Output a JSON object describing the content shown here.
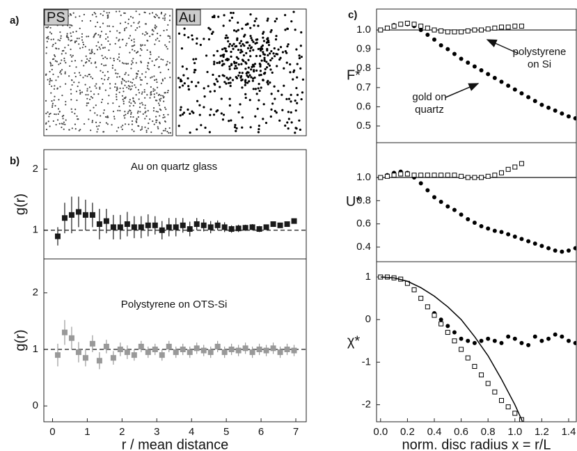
{
  "chart_data": [
    {
      "type": "image",
      "panel_label": "a)",
      "insets": [
        "PS",
        "Au"
      ]
    },
    {
      "type": "scatter",
      "panel_label": "b)",
      "annotation": "Au on quartz glass",
      "ylabel": "g(r)",
      "xlim": [
        -0.25,
        7.3
      ],
      "ylim": [
        0.53,
        2.32
      ],
      "yticks": [
        1,
        2
      ],
      "reference_line": 1,
      "series": [
        {
          "color": "#1a1a1a",
          "marker": "square",
          "x": [
            0.15,
            0.35,
            0.55,
            0.75,
            0.95,
            1.15,
            1.35,
            1.55,
            1.75,
            1.95,
            2.15,
            2.35,
            2.55,
            2.75,
            2.95,
            3.15,
            3.35,
            3.55,
            3.75,
            3.95,
            4.15,
            4.35,
            4.55,
            4.75,
            4.95,
            5.15,
            5.35,
            5.55,
            5.75,
            5.95,
            6.15,
            6.35,
            6.55,
            6.75,
            6.95
          ],
          "values": [
            0.9,
            1.2,
            1.25,
            1.3,
            1.25,
            1.25,
            1.1,
            1.15,
            1.05,
            1.05,
            1.1,
            1.05,
            1.05,
            1.08,
            1.08,
            1.0,
            1.05,
            1.05,
            1.08,
            1.02,
            1.1,
            1.08,
            1.05,
            1.08,
            1.05,
            1.02,
            1.03,
            1.04,
            1.05,
            1.02,
            1.05,
            1.1,
            1.08,
            1.1,
            1.15
          ],
          "errors": [
            0.15,
            0.25,
            0.3,
            0.25,
            0.25,
            0.2,
            0.25,
            0.2,
            0.2,
            0.2,
            0.2,
            0.18,
            0.18,
            0.18,
            0.15,
            0.15,
            0.15,
            0.15,
            0.12,
            0.12,
            0.1,
            0.1,
            0.1,
            0.08,
            0.08,
            0.06,
            0.06,
            0.05,
            0.05,
            0.05,
            0.04,
            0.04,
            0.04,
            0.04,
            0.04
          ]
        }
      ]
    },
    {
      "type": "scatter",
      "annotation": "Polystyrene on OTS-Si",
      "ylabel": "g(r)",
      "xlabel": "r / mean distance",
      "xlim": [
        -0.25,
        7.3
      ],
      "ylim": [
        -0.28,
        2.6
      ],
      "xticks": [
        0,
        1,
        2,
        3,
        4,
        5,
        6,
        7
      ],
      "yticks": [
        0,
        1,
        2
      ],
      "reference_line": 1,
      "series": [
        {
          "color": "#999999",
          "marker": "square",
          "x": [
            0.15,
            0.35,
            0.55,
            0.75,
            0.95,
            1.15,
            1.35,
            1.55,
            1.75,
            1.95,
            2.15,
            2.35,
            2.55,
            2.75,
            2.95,
            3.15,
            3.35,
            3.55,
            3.75,
            3.95,
            4.15,
            4.35,
            4.55,
            4.75,
            4.95,
            5.15,
            5.35,
            5.55,
            5.75,
            5.95,
            6.15,
            6.35,
            6.55,
            6.75,
            6.95
          ],
          "values": [
            0.9,
            1.3,
            1.2,
            0.95,
            0.85,
            1.1,
            0.8,
            1.05,
            0.85,
            1.0,
            0.95,
            0.9,
            1.05,
            0.95,
            1.0,
            0.9,
            1.05,
            0.95,
            1.0,
            0.95,
            1.02,
            0.98,
            0.95,
            1.05,
            0.95,
            1.0,
            0.98,
            1.02,
            0.95,
            1.0,
            0.98,
            1.02,
            0.95,
            1.0,
            0.98
          ],
          "errors": [
            0.2,
            0.22,
            0.2,
            0.18,
            0.15,
            0.15,
            0.15,
            0.12,
            0.12,
            0.12,
            0.12,
            0.1,
            0.1,
            0.1,
            0.1,
            0.1,
            0.1,
            0.1,
            0.1,
            0.1,
            0.1,
            0.1,
            0.1,
            0.1,
            0.1,
            0.1,
            0.1,
            0.1,
            0.1,
            0.1,
            0.1,
            0.1,
            0.1,
            0.1,
            0.1
          ]
        }
      ]
    },
    {
      "type": "scatter",
      "panel_label": "c)",
      "ylabel": "F*",
      "xlim": [
        -0.03,
        1.457
      ],
      "ylim": [
        0.413,
        1.109
      ],
      "yticks": [
        0.5,
        0.6,
        0.7,
        0.8,
        0.9,
        {
          "value": 1,
          "label": "1.0"
        }
      ],
      "reference_line": 1,
      "annotations": [
        [
          "polystyrene",
          "on Si"
        ],
        [
          "gold on",
          "quartz"
        ]
      ],
      "series": [
        {
          "color": "#000000",
          "marker": "circle",
          "x": [
            0,
            0.05,
            0.1,
            0.15,
            0.2,
            0.25,
            0.3,
            0.35,
            0.4,
            0.45,
            0.5,
            0.55,
            0.6,
            0.65,
            0.7,
            0.75,
            0.8,
            0.85,
            0.9,
            0.95,
            1.0,
            1.05,
            1.1,
            1.15,
            1.2,
            1.25,
            1.3,
            1.35,
            1.4,
            1.45
          ],
          "values": [
            1.0,
            1.01,
            1.025,
            1.03,
            1.03,
            1.02,
            1.0,
            0.975,
            0.95,
            0.92,
            0.9,
            0.875,
            0.85,
            0.83,
            0.81,
            0.79,
            0.77,
            0.75,
            0.73,
            0.71,
            0.69,
            0.67,
            0.65,
            0.63,
            0.61,
            0.595,
            0.58,
            0.565,
            0.55,
            0.54
          ]
        },
        {
          "color": "#000000",
          "marker": "open-square",
          "x": [
            0,
            0.05,
            0.1,
            0.15,
            0.2,
            0.25,
            0.3,
            0.35,
            0.4,
            0.45,
            0.5,
            0.55,
            0.6,
            0.65,
            0.7,
            0.75,
            0.8,
            0.85,
            0.9,
            0.95,
            1.0,
            1.05
          ],
          "values": [
            1.0,
            1.01,
            1.02,
            1.03,
            1.035,
            1.03,
            1.02,
            1.01,
            1.0,
            0.995,
            0.99,
            0.99,
            0.99,
            0.995,
            1.0,
            1.0,
            1.005,
            1.01,
            1.015,
            1.015,
            1.02,
            1.02
          ]
        }
      ]
    },
    {
      "type": "scatter",
      "ylabel": "U*",
      "xlim": [
        -0.03,
        1.457
      ],
      "ylim": [
        0.274,
        1.3
      ],
      "yticks": [
        0.4,
        0.6,
        0.8,
        {
          "value": 1,
          "label": "1.0"
        }
      ],
      "reference_line": 1,
      "series": [
        {
          "color": "#000000",
          "marker": "circle",
          "x": [
            0,
            0.05,
            0.1,
            0.15,
            0.2,
            0.25,
            0.3,
            0.35,
            0.4,
            0.45,
            0.5,
            0.55,
            0.6,
            0.65,
            0.7,
            0.75,
            0.8,
            0.85,
            0.9,
            0.95,
            1.0,
            1.05,
            1.1,
            1.15,
            1.2,
            1.25,
            1.3,
            1.35,
            1.4,
            1.45
          ],
          "values": [
            1.0,
            1.02,
            1.04,
            1.05,
            1.04,
            1.0,
            0.95,
            0.89,
            0.83,
            0.79,
            0.75,
            0.72,
            0.68,
            0.64,
            0.61,
            0.58,
            0.56,
            0.54,
            0.53,
            0.51,
            0.49,
            0.47,
            0.45,
            0.43,
            0.41,
            0.39,
            0.37,
            0.36,
            0.37,
            0.39
          ]
        },
        {
          "color": "#000000",
          "marker": "open-square",
          "x": [
            0,
            0.05,
            0.1,
            0.15,
            0.2,
            0.25,
            0.3,
            0.35,
            0.4,
            0.45,
            0.5,
            0.55,
            0.6,
            0.65,
            0.7,
            0.75,
            0.8,
            0.85,
            0.9,
            0.95,
            1.0,
            1.05
          ],
          "values": [
            1.0,
            1.01,
            1.02,
            1.03,
            1.03,
            1.02,
            1.02,
            1.02,
            1.02,
            1.02,
            1.02,
            1.02,
            1.01,
            1.0,
            1.0,
            1.0,
            1.01,
            1.02,
            1.04,
            1.07,
            1.09,
            1.12
          ]
        }
      ]
    },
    {
      "type": "scatter",
      "ylabel": "χ*",
      "xlabel": "norm. disc radius x = r/L",
      "xlim": [
        -0.03,
        1.457
      ],
      "ylim": [
        -2.4,
        1.36
      ],
      "xticks": [
        {
          "value": 0,
          "label": "0.0"
        },
        0.2,
        0.4,
        0.6,
        0.8,
        {
          "value": 1,
          "label": "1.0"
        },
        1.2,
        1.4
      ],
      "yticks": [
        -2,
        -1,
        0,
        1
      ],
      "series": [
        {
          "color": "#000000",
          "marker": "circle",
          "x": [
            0,
            0.05,
            0.1,
            0.15,
            0.2,
            0.25,
            0.3,
            0.35,
            0.4,
            0.45,
            0.5,
            0.55,
            0.6,
            0.65,
            0.7,
            0.75,
            0.8,
            0.85,
            0.9,
            0.95,
            1.0,
            1.05,
            1.1,
            1.15,
            1.2,
            1.25,
            1.3,
            1.35,
            1.4,
            1.45
          ],
          "values": [
            1,
            1,
            0.98,
            0.95,
            0.85,
            0.7,
            0.5,
            0.3,
            0.15,
            0,
            -0.15,
            -0.3,
            -0.45,
            -0.5,
            -0.55,
            -0.5,
            -0.45,
            -0.5,
            -0.55,
            -0.4,
            -0.45,
            -0.55,
            -0.6,
            -0.4,
            -0.5,
            -0.45,
            -0.35,
            -0.4,
            -0.5,
            -0.55
          ]
        },
        {
          "color": "#000000",
          "marker": "open-square",
          "x": [
            0,
            0.05,
            0.1,
            0.15,
            0.2,
            0.25,
            0.3,
            0.35,
            0.4,
            0.45,
            0.5,
            0.55,
            0.6,
            0.65,
            0.7,
            0.75,
            0.8,
            0.85,
            0.9,
            0.95,
            1.0,
            1.05
          ],
          "values": [
            1,
            1,
            0.98,
            0.95,
            0.85,
            0.7,
            0.5,
            0.3,
            0.1,
            -0.1,
            -0.3,
            -0.5,
            -0.7,
            -0.9,
            -1.1,
            -1.3,
            -1.5,
            -1.7,
            -1.9,
            -2.05,
            -2.2,
            -2.35
          ]
        },
        {
          "color": "#000000",
          "marker": "line",
          "x": [
            0,
            0.1,
            0.2,
            0.3,
            0.4,
            0.5,
            0.6,
            0.7,
            0.8,
            0.9,
            1.0,
            1.1
          ],
          "values": [
            1,
            0.98,
            0.9,
            0.75,
            0.55,
            0.3,
            0,
            -0.4,
            -0.85,
            -1.4,
            -2.0,
            -2.7
          ]
        }
      ]
    }
  ]
}
